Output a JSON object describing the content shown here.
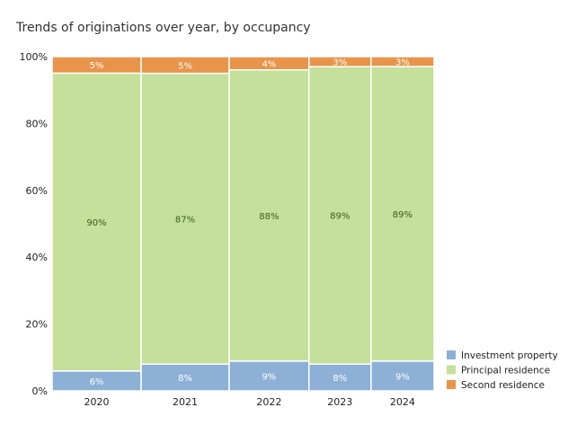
{
  "chart_data": {
    "type": "bar",
    "stacked": true,
    "title": "Trends of originations over year, by occupancy",
    "categories": [
      "2020",
      "2021",
      "2022",
      "2023",
      "2024"
    ],
    "series": [
      {
        "name": "Investment property",
        "color": "#8cb0d6",
        "values": [
          6,
          8,
          9,
          8,
          9
        ],
        "labels": [
          "6%",
          "8%",
          "9%",
          "8%",
          "9%"
        ]
      },
      {
        "name": "Principal residence",
        "color": "#c5e09b",
        "values": [
          90,
          87,
          88,
          89,
          89
        ],
        "labels": [
          "90%",
          "87%",
          "88%",
          "89%",
          "89%"
        ]
      },
      {
        "name": "Second residence",
        "color": "#e8944a",
        "values": [
          5,
          5,
          4,
          3,
          3
        ],
        "labels": [
          "5%",
          "5%",
          "4%",
          "3%",
          "3%"
        ]
      }
    ],
    "y_ticks": [
      "0%",
      "20%",
      "40%",
      "60%",
      "80%",
      "100%"
    ],
    "ylim": [
      0,
      100
    ],
    "grid": false,
    "legend_position": "bottom-right"
  }
}
